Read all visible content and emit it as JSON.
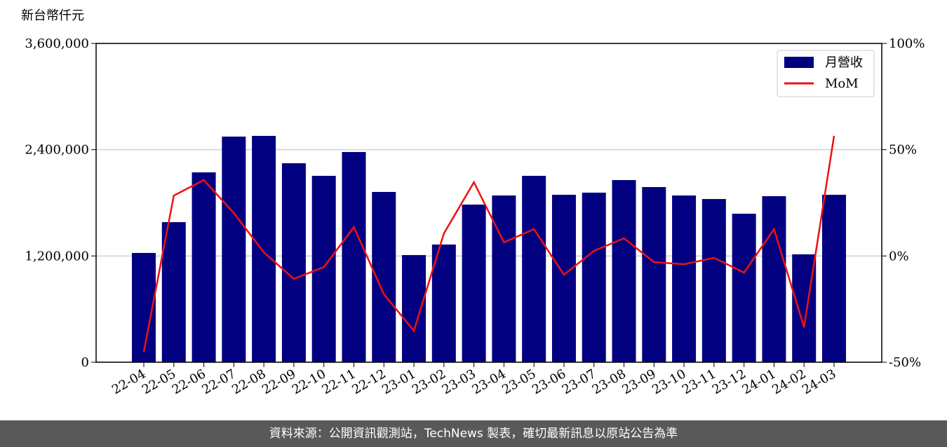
{
  "chart_data": {
    "type": "bar_line",
    "y_axis_label": "新台幣仟元",
    "categories": [
      "22-04",
      "22-05",
      "22-06",
      "22-07",
      "22-08",
      "22-09",
      "22-10",
      "22-11",
      "22-12",
      "23-01",
      "23-02",
      "23-03",
      "23-04",
      "23-05",
      "23-06",
      "23-07",
      "23-08",
      "23-09",
      "23-10",
      "23-11",
      "23-12",
      "24-01",
      "24-02",
      "24-03"
    ],
    "series": [
      {
        "name": "月營收",
        "type": "bar",
        "color": "#000080",
        "values": [
          1234000,
          1582000,
          2144000,
          2548000,
          2556000,
          2247000,
          2105000,
          2374000,
          1923000,
          1210000,
          1329000,
          1780000,
          1883000,
          2105000,
          1891000,
          1915000,
          2057000,
          1978000,
          1883000,
          1843000,
          1677000,
          1875000,
          1218000,
          1891000
        ]
      },
      {
        "name": "MoM",
        "type": "line",
        "axis": "y2",
        "color": "#ee1111",
        "values": [
          -45.1,
          28.4,
          35.7,
          20.2,
          1.7,
          -10.8,
          -5.2,
          13.6,
          -18.0,
          -35.2,
          10.6,
          34.7,
          6.4,
          12.6,
          -8.8,
          2.4,
          8.3,
          -2.9,
          -3.9,
          -0.9,
          -7.8,
          12.6,
          -33.5,
          56.5
        ]
      }
    ],
    "ylim": [
      0,
      3600000
    ],
    "yticks": [
      {
        "value": 0,
        "label": "0"
      },
      {
        "value": 1200000,
        "label": "1,200,000"
      },
      {
        "value": 2400000,
        "label": "2,400,000"
      },
      {
        "value": 3600000,
        "label": "3,600,000"
      }
    ],
    "y2lim": [
      -50,
      100
    ],
    "y2ticks": [
      {
        "value": -50,
        "label": "-50%"
      },
      {
        "value": 0,
        "label": "0%"
      },
      {
        "value": 50,
        "label": "50%"
      },
      {
        "value": 100,
        "label": "100%"
      }
    ],
    "grid": true,
    "legend": "upper right"
  },
  "footer": "資料來源：公開資訊觀測站，TechNews 製表，確切最新訊息以原站公告為準"
}
